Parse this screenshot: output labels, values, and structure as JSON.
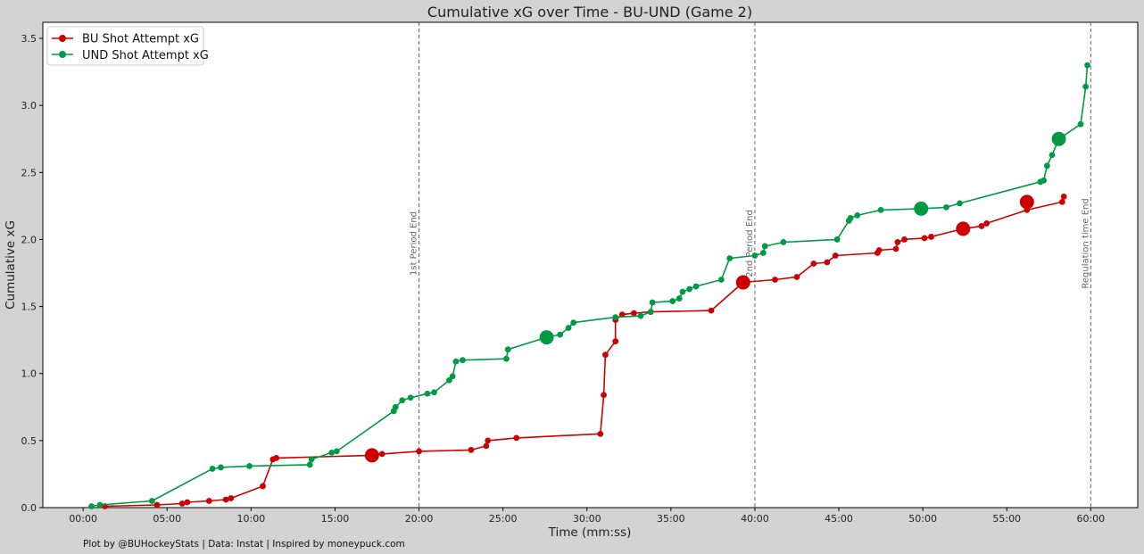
{
  "chart_data": {
    "type": "line",
    "title": "Cumulative xG over Time - BU-UND (Game 2)",
    "xlabel": "Time (mm:ss)",
    "ylabel": "Cumulative xG",
    "xlim": [
      -2.4,
      62.8
    ],
    "ylim": [
      0,
      3.62
    ],
    "x_units": "minutes",
    "xticks": [
      0,
      5,
      10,
      15,
      20,
      25,
      30,
      35,
      40,
      45,
      50,
      55,
      60
    ],
    "xtick_labels": [
      "00:00",
      "05:00",
      "10:00",
      "15:00",
      "20:00",
      "25:00",
      "30:00",
      "35:00",
      "40:00",
      "45:00",
      "50:00",
      "55:00",
      "60:00"
    ],
    "yticks": [
      0.0,
      0.5,
      1.0,
      1.5,
      2.0,
      2.5,
      3.0,
      3.5
    ],
    "ytick_labels": [
      "0.0",
      "0.5",
      "1.0",
      "1.5",
      "2.0",
      "2.5",
      "3.0",
      "3.5"
    ],
    "grid": false,
    "legend_position": "top-left",
    "vlines": [
      {
        "x": 20,
        "label": "1st Period End"
      },
      {
        "x": 40,
        "label": "2nd Period End"
      },
      {
        "x": 60,
        "label": "Regulation time End"
      }
    ],
    "series": [
      {
        "name": "BU Shot Attempt xG",
        "color": "#cc0000",
        "x": [
          1.3,
          4.4,
          5.9,
          6.2,
          7.5,
          8.5,
          8.8,
          10.7,
          11.3,
          11.5,
          17.2,
          17.8,
          20.0,
          23.1,
          24.0,
          24.1,
          25.8,
          30.8,
          31.0,
          31.1,
          31.7,
          31.7,
          32.1,
          32.8,
          33.8,
          37.4,
          39.3,
          41.2,
          42.5,
          43.5,
          44.3,
          44.8,
          47.3,
          47.4,
          48.4,
          48.5,
          48.9,
          50.1,
          50.5,
          52.4,
          53.5,
          53.8,
          56.2,
          58.3,
          58.4
        ],
        "y": [
          0.01,
          0.02,
          0.03,
          0.04,
          0.05,
          0.06,
          0.07,
          0.16,
          0.36,
          0.37,
          0.39,
          0.4,
          0.42,
          0.43,
          0.46,
          0.5,
          0.52,
          0.55,
          0.84,
          1.14,
          1.24,
          1.4,
          1.44,
          1.45,
          1.46,
          1.47,
          1.68,
          1.7,
          1.72,
          1.82,
          1.83,
          1.88,
          1.9,
          1.92,
          1.93,
          1.98,
          2.0,
          2.01,
          2.02,
          2.08,
          2.1,
          2.12,
          2.22,
          2.28,
          2.32
        ],
        "goals_x": [
          17.2,
          39.3,
          52.4,
          56.2
        ],
        "goals_y": [
          0.39,
          1.68,
          2.08,
          2.28
        ]
      },
      {
        "name": "UND Shot Attempt xG",
        "color": "#009944",
        "x": [
          0.5,
          1.0,
          4.1,
          7.7,
          8.2,
          9.9,
          13.5,
          13.6,
          14.8,
          15.1,
          18.5,
          18.6,
          19.0,
          19.5,
          20.5,
          20.9,
          21.8,
          22.0,
          22.2,
          22.6,
          25.2,
          25.3,
          27.6,
          28.4,
          28.9,
          29.2,
          31.7,
          33.2,
          33.8,
          33.9,
          35.1,
          35.5,
          35.7,
          36.1,
          36.5,
          38.0,
          38.5,
          40.0,
          40.5,
          40.6,
          41.7,
          44.9,
          45.6,
          45.7,
          46.1,
          47.5,
          49.9,
          51.4,
          52.2,
          57.0,
          57.2,
          57.4,
          57.7,
          58.1,
          59.4,
          59.7,
          59.8
        ],
        "y": [
          0.01,
          0.02,
          0.05,
          0.29,
          0.3,
          0.31,
          0.32,
          0.36,
          0.41,
          0.42,
          0.72,
          0.75,
          0.8,
          0.82,
          0.85,
          0.86,
          0.95,
          0.98,
          1.09,
          1.1,
          1.11,
          1.18,
          1.27,
          1.29,
          1.34,
          1.38,
          1.42,
          1.43,
          1.46,
          1.53,
          1.54,
          1.56,
          1.61,
          1.63,
          1.65,
          1.7,
          1.86,
          1.88,
          1.9,
          1.95,
          1.98,
          2.0,
          2.14,
          2.16,
          2.18,
          2.22,
          2.23,
          2.24,
          2.27,
          2.43,
          2.44,
          2.55,
          2.63,
          2.75,
          2.86,
          3.14,
          3.3
        ],
        "goals_x": [
          27.6,
          49.9,
          58.1
        ],
        "goals_y": [
          1.27,
          2.23,
          2.75
        ]
      }
    ],
    "footnote": "Plot by @BUHockeyStats | Data: Instat | Inspired by moneypuck.com"
  }
}
